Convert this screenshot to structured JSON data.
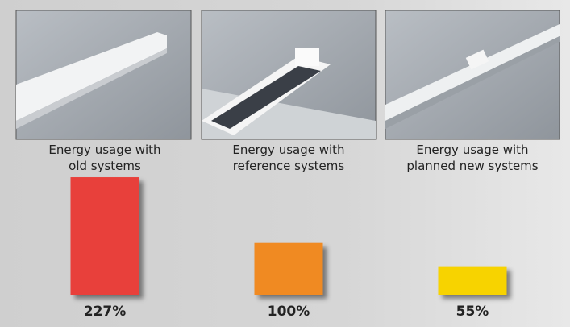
{
  "chart_data": {
    "type": "bar",
    "categories": [
      "Energy usage with\nold systems",
      "Energy usage with\nreference systems",
      "Energy usage with\nplanned new systems"
    ],
    "series": [
      {
        "colors": [
          "#e8403a",
          "#f08a24",
          "#f7d300"
        ],
        "values": [
          227,
          100,
          55
        ],
        "value_labels": [
          "227%",
          "100%",
          "55%"
        ]
      }
    ]
  }
}
